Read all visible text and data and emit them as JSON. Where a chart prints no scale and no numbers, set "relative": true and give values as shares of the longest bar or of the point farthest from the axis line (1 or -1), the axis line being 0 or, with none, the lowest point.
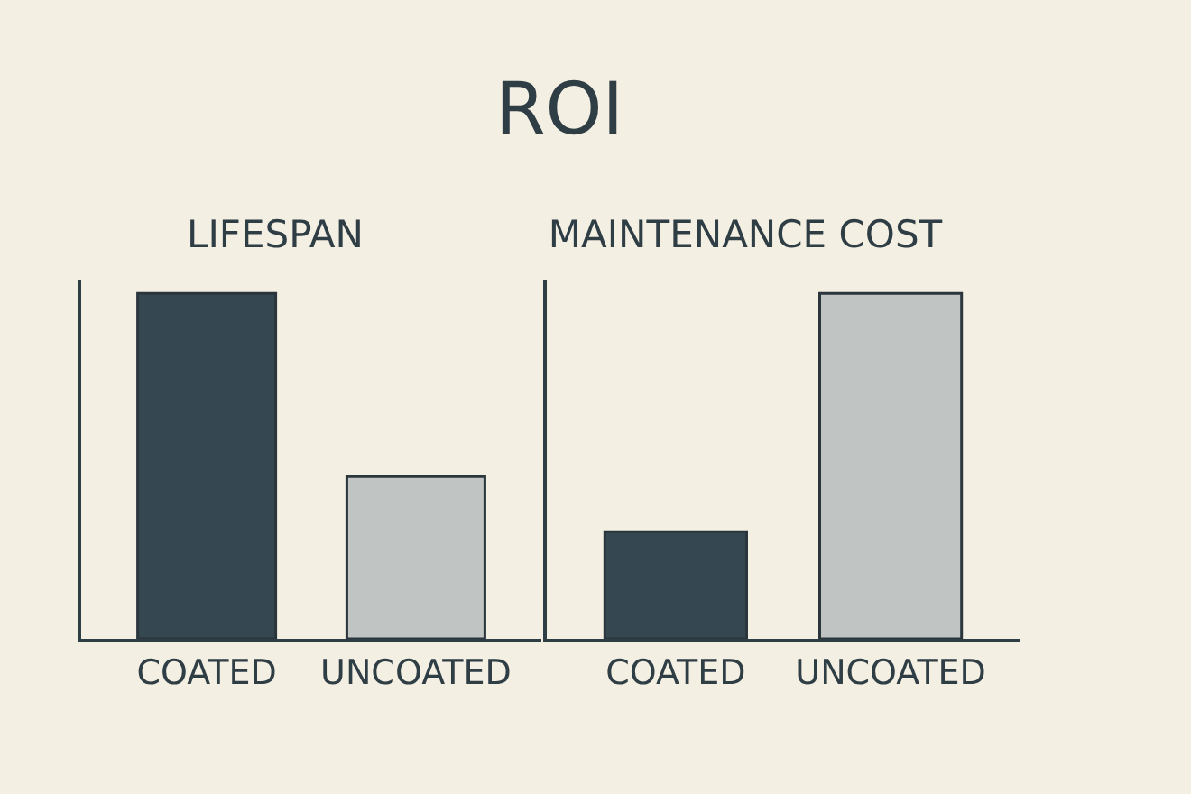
{
  "chart_data": [
    {
      "type": "bar",
      "title": "ROI",
      "subtitle": "LIFESPAN",
      "categories": [
        "COATED",
        "UNCOATED"
      ],
      "values": [
        1,
        0.47
      ],
      "colors": [
        "#354750",
        "#c0c4c2"
      ],
      "relative": true,
      "grid": false,
      "legend": false
    },
    {
      "type": "bar",
      "subtitle": "MAINTENANCE COST",
      "categories": [
        "COATED",
        "UNCOATED"
      ],
      "values": [
        0.31,
        1
      ],
      "colors": [
        "#354750",
        "#c0c4c2"
      ],
      "relative": true,
      "grid": false,
      "legend": false
    }
  ]
}
